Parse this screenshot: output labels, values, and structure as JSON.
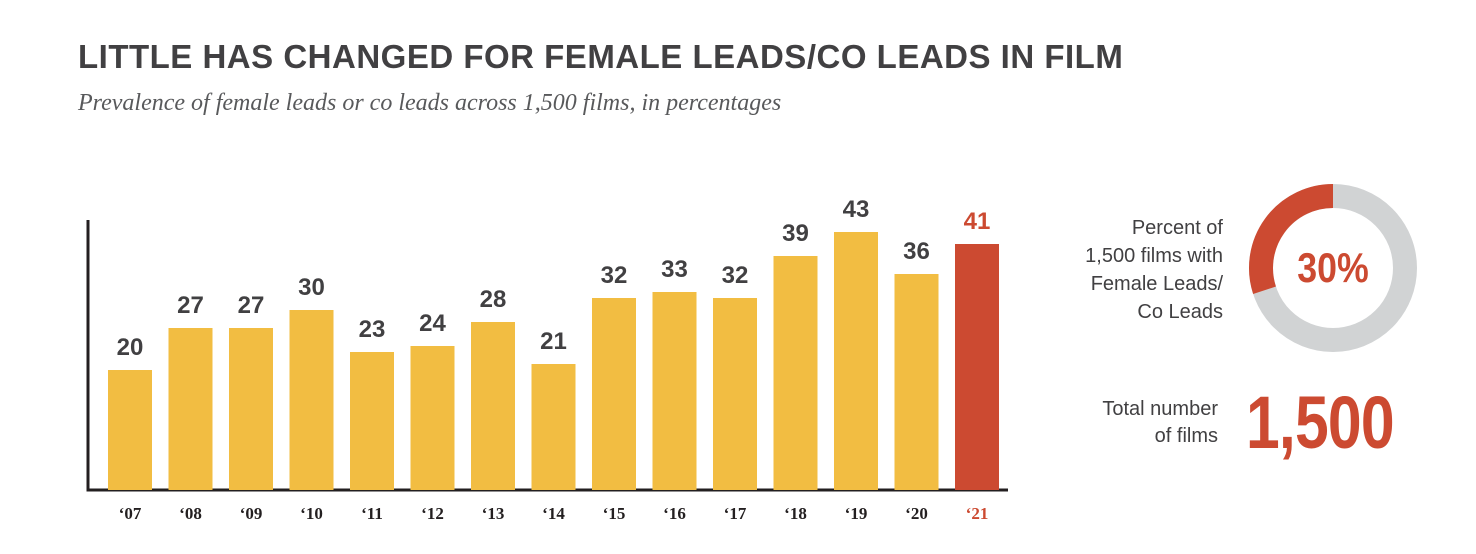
{
  "title": "LITTLE HAS CHANGED FOR FEMALE LEADS/CO LEADS IN FILM",
  "subtitle": "Prevalence of female leads or co leads across 1,500 films, in percentages",
  "chart_data": {
    "type": "bar",
    "categories": [
      "‘07",
      "‘08",
      "‘09",
      "‘10",
      "‘11",
      "‘12",
      "‘13",
      "‘14",
      "‘15",
      "‘16",
      "‘17",
      "‘18",
      "‘19",
      "‘20",
      "‘21"
    ],
    "values": [
      20,
      27,
      27,
      30,
      23,
      24,
      28,
      21,
      32,
      33,
      32,
      39,
      43,
      36,
      41
    ],
    "highlight_index": 14,
    "title": "LITTLE HAS CHANGED FOR FEMALE LEADS/CO LEADS IN FILM",
    "xlabel": "",
    "ylabel": "",
    "ylim": [
      0,
      43
    ]
  },
  "colors": {
    "bar": "#f2bd42",
    "highlight": "#cc4a31",
    "text": "#414042",
    "donut_track": "#d1d3d4"
  },
  "donut": {
    "label_lines": [
      "Percent of",
      "1,500 films with",
      "Female Leads/",
      "Co Leads"
    ],
    "percent": 30,
    "center_text": "30%"
  },
  "total": {
    "label_lines": [
      "Total number",
      "of films"
    ],
    "value_text": "1,500"
  }
}
